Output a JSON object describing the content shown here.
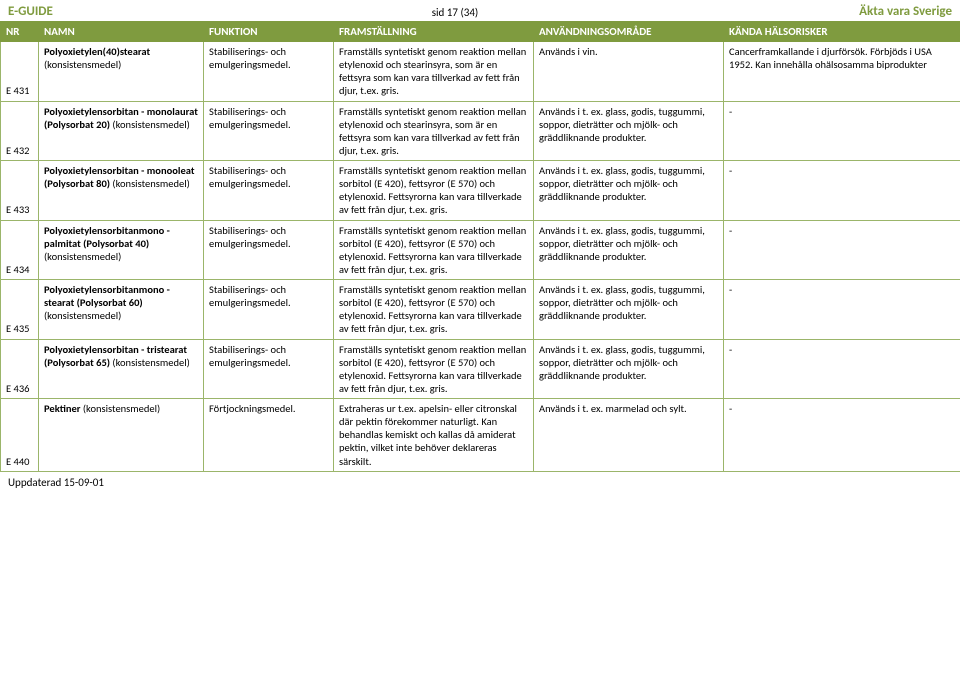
{
  "header": {
    "title": "E-GUIDE",
    "page": "sid 17 (34)",
    "brand": "Äkta vara Sverige"
  },
  "columns": {
    "nr": "NR",
    "namn": "NAMN",
    "funktion": "FUNKTION",
    "fram": "FRAMSTÄLLNING",
    "anv": "ANVÄNDNINGSOMRÅDE",
    "risk": "KÄNDA HÄLSORISKER"
  },
  "rows": [
    {
      "nr": "E 431",
      "namn_bold": "Polyoxietylen(40)stearat",
      "namn_rest": " (konsistensmedel)",
      "funktion": "Stabiliserings- och emulgeringsmedel.",
      "fram": "Framställs syntetiskt genom reaktion mellan etylenoxid och stearinsyra, som är en fettsyra som kan vara tillverkad av fett från djur, t.ex. gris.",
      "anv": "Används i vin.",
      "risk": "Cancerframkallande i djurförsök. Förbjöds i USA 1952. Kan innehålla ohälsosamma biprodukter"
    },
    {
      "nr": "E 432",
      "namn_bold": "Polyoxietylensorbitan - monolaurat (Polysorbat 20)",
      "namn_rest": " (konsistensmedel)",
      "funktion": "Stabiliserings- och emulgeringsmedel.",
      "fram": "Framställs syntetiskt genom reaktion mellan etylenoxid och stearinsyra, som är en fettsyra som kan vara tillverkad av fett från djur, t.ex. gris.",
      "anv": "Används i t. ex. glass, godis, tuggummi, soppor, dieträtter och mjölk- och gräddliknande produkter.",
      "risk": "-"
    },
    {
      "nr": "E 433",
      "namn_bold": "Polyoxietylensorbitan - monooleat (Polysorbat 80)",
      "namn_rest": " (konsistensmedel)",
      "funktion": "Stabiliserings- och emulgeringsmedel.",
      "fram": "Framställs syntetiskt genom reaktion mellan sorbitol (E 420), fettsyror (E 570) och etylenoxid. Fettsyrorna kan vara tillverkade av fett från djur, t.ex. gris.",
      "anv": "Används i t. ex. glass, godis, tuggummi, soppor, dieträtter och mjölk- och gräddliknande produkter.",
      "risk": "-"
    },
    {
      "nr": "E 434",
      "namn_bold": "Polyoxietylensorbitanmono - palmitat (Polysorbat 40)",
      "namn_rest": " (konsistensmedel)",
      "funktion": "Stabiliserings- och emulgeringsmedel.",
      "fram": "Framställs syntetiskt genom reaktion mellan sorbitol (E 420), fettsyror (E 570) och etylenoxid. Fettsyrorna kan vara tillverkade av fett från djur, t.ex. gris.",
      "anv": "Används i t. ex. glass, godis, tuggummi, soppor, dieträtter och mjölk- och gräddliknande produkter.",
      "risk": "-"
    },
    {
      "nr": "E 435",
      "namn_bold": "Polyoxietylensorbitanmono - stearat (Polysorbat 60)",
      "namn_rest": " (konsistensmedel)",
      "funktion": "Stabiliserings- och emulgeringsmedel.",
      "fram": "Framställs syntetiskt genom reaktion mellan sorbitol (E 420), fettsyror (E 570) och etylenoxid. Fettsyrorna kan vara tillverkade av fett från djur, t.ex. gris.",
      "anv": "Används i t. ex. glass, godis, tuggummi, soppor, dieträtter och mjölk- och gräddliknande produkter.",
      "risk": "-"
    },
    {
      "nr": "E 436",
      "namn_bold": "Polyoxietylensorbitan - tristearat (Polysorbat 65)",
      "namn_rest": " (konsistensmedel)",
      "funktion": "Stabiliserings- och emulgeringsmedel.",
      "fram": "Framställs syntetiskt genom reaktion mellan sorbitol (E 420), fettsyror (E 570) och etylenoxid. Fettsyrorna kan vara tillverkade av fett från djur, t.ex. gris.",
      "anv": "Används i t. ex. glass, godis, tuggummi, soppor, dieträtter och mjölk- och gräddliknande produkter.",
      "risk": "-"
    },
    {
      "nr": "E 440",
      "namn_bold": "Pektiner",
      "namn_rest": " (konsistensmedel)",
      "funktion": "Förtjockningsmedel.",
      "fram": "Extraheras ur t.ex. apelsin- eller citronskal där pektin förekommer naturligt. Kan behandlas kemiskt och kallas då amiderat pektin, vilket inte behöver deklareras särskilt.",
      "anv": "Används i t. ex. marmelad och sylt.",
      "risk": "-"
    }
  ],
  "footer": "Uppdaterad 15-09-01"
}
